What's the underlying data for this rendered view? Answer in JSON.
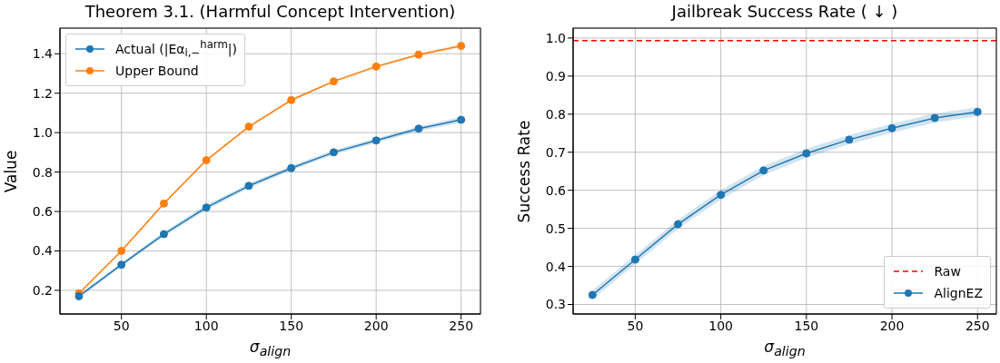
{
  "chart_data": [
    {
      "type": "line",
      "title": "Theorem 3.1. (Harmful Concept Intervention)",
      "xlabel": "σ$_{align}$",
      "ylabel": "Value",
      "x": [
        25,
        50,
        75,
        100,
        125,
        150,
        175,
        200,
        225,
        250
      ],
      "series": [
        {
          "name": "Actual (|Eα$_{i,−}$$^{harm}$|)",
          "color": "#1f77b4",
          "values": [
            0.17,
            0.33,
            0.485,
            0.62,
            0.73,
            0.82,
            0.9,
            0.96,
            1.02,
            1.065
          ],
          "lower": [
            0.16,
            0.32,
            0.473,
            0.607,
            0.718,
            0.808,
            0.888,
            0.948,
            1.008,
            1.05
          ],
          "upper": [
            0.18,
            0.34,
            0.497,
            0.633,
            0.742,
            0.832,
            0.912,
            0.972,
            1.032,
            1.08
          ]
        },
        {
          "name": "Upper Bound",
          "color": "#ff7f0e",
          "values": [
            0.185,
            0.4,
            0.64,
            0.86,
            1.03,
            1.165,
            1.26,
            1.335,
            1.395,
            1.44
          ],
          "lower": [
            0.18,
            0.394,
            0.634,
            0.854,
            1.024,
            1.158,
            1.253,
            1.328,
            1.388,
            1.432
          ],
          "upper": [
            0.19,
            0.406,
            0.646,
            0.866,
            1.036,
            1.172,
            1.267,
            1.342,
            1.402,
            1.448
          ]
        }
      ],
      "xlim": [
        13.8,
        261.4
      ],
      "ylim": [
        0.08,
        1.53
      ],
      "xticks": [
        50,
        100,
        150,
        200,
        250
      ],
      "yticks": [
        0.2,
        0.4,
        0.6,
        0.8,
        {
          "value": 1,
          "label": "1.0"
        },
        1.2,
        1.4
      ],
      "grid": true,
      "legend": "top left",
      "marker": "circle",
      "line_style": "solid"
    },
    {
      "type": "line",
      "title": "Jailbreak Success Rate ( ↓ )",
      "xlabel": "σ$_{align}$",
      "ylabel": "Success Rate",
      "x": [
        25,
        50,
        75,
        100,
        125,
        150,
        175,
        200,
        225,
        250
      ],
      "series": [
        {
          "name": "AlignEZ",
          "color": "#1f77b4",
          "values": [
            0.325,
            0.418,
            0.511,
            0.588,
            0.652,
            0.697,
            0.733,
            0.763,
            0.79,
            0.806
          ],
          "lower": [
            0.313,
            0.406,
            0.499,
            0.576,
            0.64,
            0.685,
            0.721,
            0.751,
            0.778,
            0.794
          ],
          "upper": [
            0.337,
            0.43,
            0.523,
            0.6,
            0.664,
            0.709,
            0.745,
            0.775,
            0.802,
            0.818
          ]
        }
      ],
      "ref_lines": [
        {
          "axis": "y",
          "value": 0.993,
          "label": "Raw",
          "color": "#ff0000",
          "line_style": "dashed"
        }
      ],
      "xlim": [
        13.7,
        261
      ],
      "ylim": [
        0.275,
        1.026
      ],
      "xticks": [
        50,
        100,
        150,
        200,
        250
      ],
      "yticks": [
        0.3,
        0.4,
        0.5,
        0.6,
        0.7,
        0.8,
        0.9,
        {
          "value": 1,
          "label": "1.0"
        }
      ],
      "grid": true,
      "legend": "bottom right",
      "marker": "circle",
      "line_style": "solid"
    }
  ]
}
